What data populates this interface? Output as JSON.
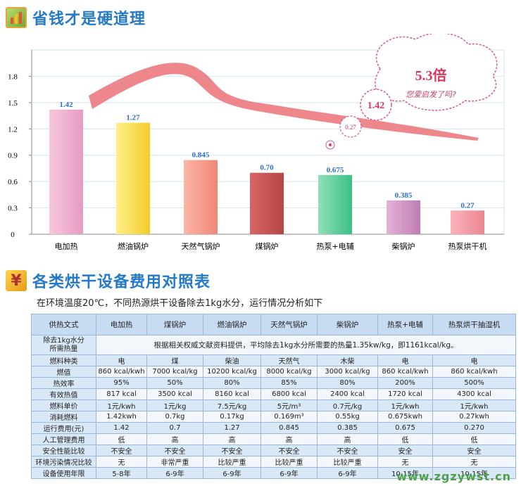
{
  "section1": {
    "title": "省钱才是硬道理"
  },
  "section2": {
    "title": "各类烘干设备费用对照表",
    "icon_char": "¥"
  },
  "chart_data": {
    "type": "bar",
    "categories": [
      "电加热",
      "燃油锅炉",
      "天然气锅炉",
      "煤锅炉",
      "热泵+电辅",
      "柴锅炉",
      "热泵烘干机"
    ],
    "values": [
      1.42,
      1.27,
      0.845,
      0.7,
      0.675,
      0.385,
      0.27
    ],
    "data_labels": [
      "1.42",
      "1.27",
      "0.845",
      "0.70",
      "0.675",
      "0.385",
      "0.27"
    ],
    "yticks": [
      "0",
      "0.3",
      "0.6",
      "0.9",
      "1.2",
      "1.5",
      "1.8"
    ],
    "ylim": [
      0,
      2.1
    ],
    "bar_colors": [
      [
        "#f7c8dc",
        "#e79bc3"
      ],
      [
        "#fff08a",
        "#f2cc2a"
      ],
      [
        "#fbb7a6",
        "#ef8677"
      ],
      [
        "#d96565",
        "#b54747"
      ],
      [
        "#8fe0b8",
        "#3dbf85"
      ],
      [
        "#e3b3d5",
        "#c07cb4"
      ],
      [
        "#fbb3bc",
        "#ec8791"
      ]
    ],
    "label_color": "#2d6fc4",
    "grid": true,
    "annotations": {
      "cloud_text": "5.3倍",
      "cloud_sub": "您爱启发了吗?",
      "bubble_big": "1.42",
      "bubble_small": "0.27",
      "curve_color": "#ec7a80"
    }
  },
  "intro_text": "在环境温度20℃，不同热源烘干设备除去1kg水分，运行情况分析如下",
  "table": {
    "header": [
      "供热文式",
      "电加热",
      "煤锅炉",
      "燃油锅炉",
      "天然气锅炉",
      "柴锅炉",
      "热泵+电辅",
      "热泵烘干抽湿机"
    ],
    "heat_row_label": "除去1kg水分\n所需热量",
    "heat_row_text": "根据相关权威文献资料提供，平均除去1kg水分所需要的热量1.35kw/kg，即1161kcal/kg。",
    "rows": [
      [
        "燃料种类",
        "电",
        "煤",
        "柴油",
        "天然气",
        "木柴",
        "电",
        "电"
      ],
      [
        "燃值",
        "860 kcal/kwh",
        "7000 kcal/kg",
        "10200 kcal/kg",
        "8000 kcal/kg",
        "3000 kcal/kg",
        "860 kcal/kwh",
        "860 kcal/kwh"
      ],
      [
        "热效率",
        "95%",
        "50%",
        "80%",
        "85%",
        "80%",
        "200%",
        "500%"
      ],
      [
        "有效热值",
        "817 kcal",
        "3500 kcal",
        "8160 kcal",
        "6800 kcal",
        "2400 kcal",
        "1720 kcal",
        "4300 kcal"
      ],
      [
        "燃料单价",
        "1元/kwh",
        "1元/kg",
        "7.5元/kg",
        "5元/m³",
        "0.7元/kg",
        "1元/kwh",
        "1元/kwh"
      ],
      [
        "消耗燃料",
        "1.42kwh",
        "0.7kg",
        "0.17kg",
        "0.169m³",
        "0.55kg",
        "0.675kwh",
        "0.27kwh"
      ],
      [
        "运行费用(元)",
        "1.42",
        "0.7",
        "1.27",
        "0.845",
        "0.385",
        "0.675",
        "0.270"
      ],
      [
        "人工管理费用",
        "低",
        "高",
        "高",
        "高",
        "高",
        "低",
        "低"
      ],
      [
        "安全性能比较",
        "不安全",
        "不安全",
        "不安全",
        "不安全",
        "不安全",
        "安全",
        "安全"
      ],
      [
        "环境污染情况比较",
        "无",
        "非常严重",
        "比较严重",
        "比较严重",
        "比较严重",
        "无",
        "无"
      ],
      [
        "设备使用年限",
        "5-8年",
        "6-9年",
        "6-9年",
        "6-9年",
        "6-9年",
        "10-15年",
        "10-15年"
      ]
    ]
  },
  "watermark": "www.zgzywst.cn"
}
